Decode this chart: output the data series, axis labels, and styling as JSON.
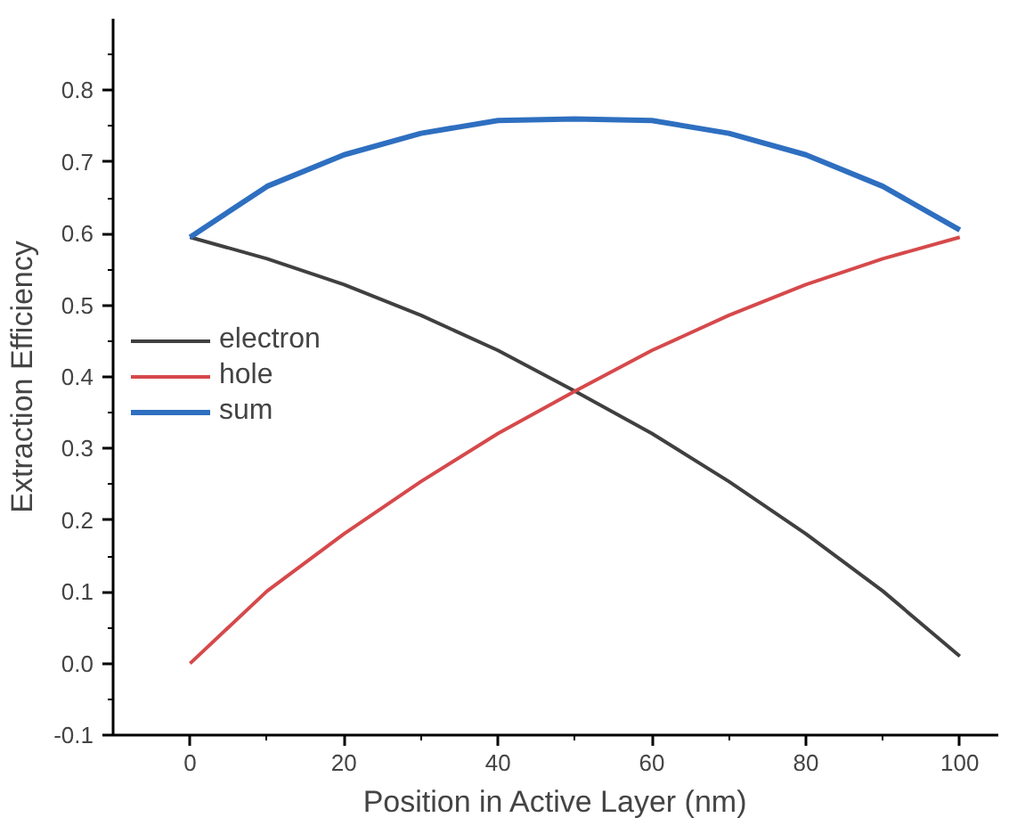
{
  "chart_data": {
    "type": "line",
    "xlabel": "Position in Active Layer (nm)",
    "ylabel": "Extraction Efficiency",
    "x": [
      0,
      10,
      20,
      30,
      40,
      50,
      60,
      70,
      80,
      90,
      100
    ],
    "series": [
      {
        "name": "electron",
        "color": "#404040",
        "values": [
          0.595,
          0.565,
          0.529,
          0.486,
          0.437,
          0.38,
          0.321,
          0.254,
          0.181,
          0.101,
          0.01
        ]
      },
      {
        "name": "hole",
        "color": "#d6494b",
        "values": [
          0.0,
          0.101,
          0.181,
          0.254,
          0.321,
          0.38,
          0.437,
          0.486,
          0.529,
          0.565,
          0.595
        ]
      },
      {
        "name": "sum",
        "color": "#2e6fc0",
        "values": [
          0.595,
          0.666,
          0.71,
          0.74,
          0.758,
          0.76,
          0.758,
          0.74,
          0.71,
          0.666,
          0.605
        ]
      }
    ],
    "xlim": [
      -10,
      105
    ],
    "xticks": [
      0,
      20,
      40,
      60,
      80,
      100
    ],
    "ylim": [
      -0.1,
      0.9
    ],
    "yticks": [
      -0.1,
      {
        "value": 0,
        "label": "0.0"
      },
      0.1,
      0.2,
      0.3,
      0.4,
      0.5,
      0.6,
      0.7,
      0.8
    ],
    "grid": false,
    "legend": "left",
    "marker": "none",
    "line_style": "solid"
  }
}
